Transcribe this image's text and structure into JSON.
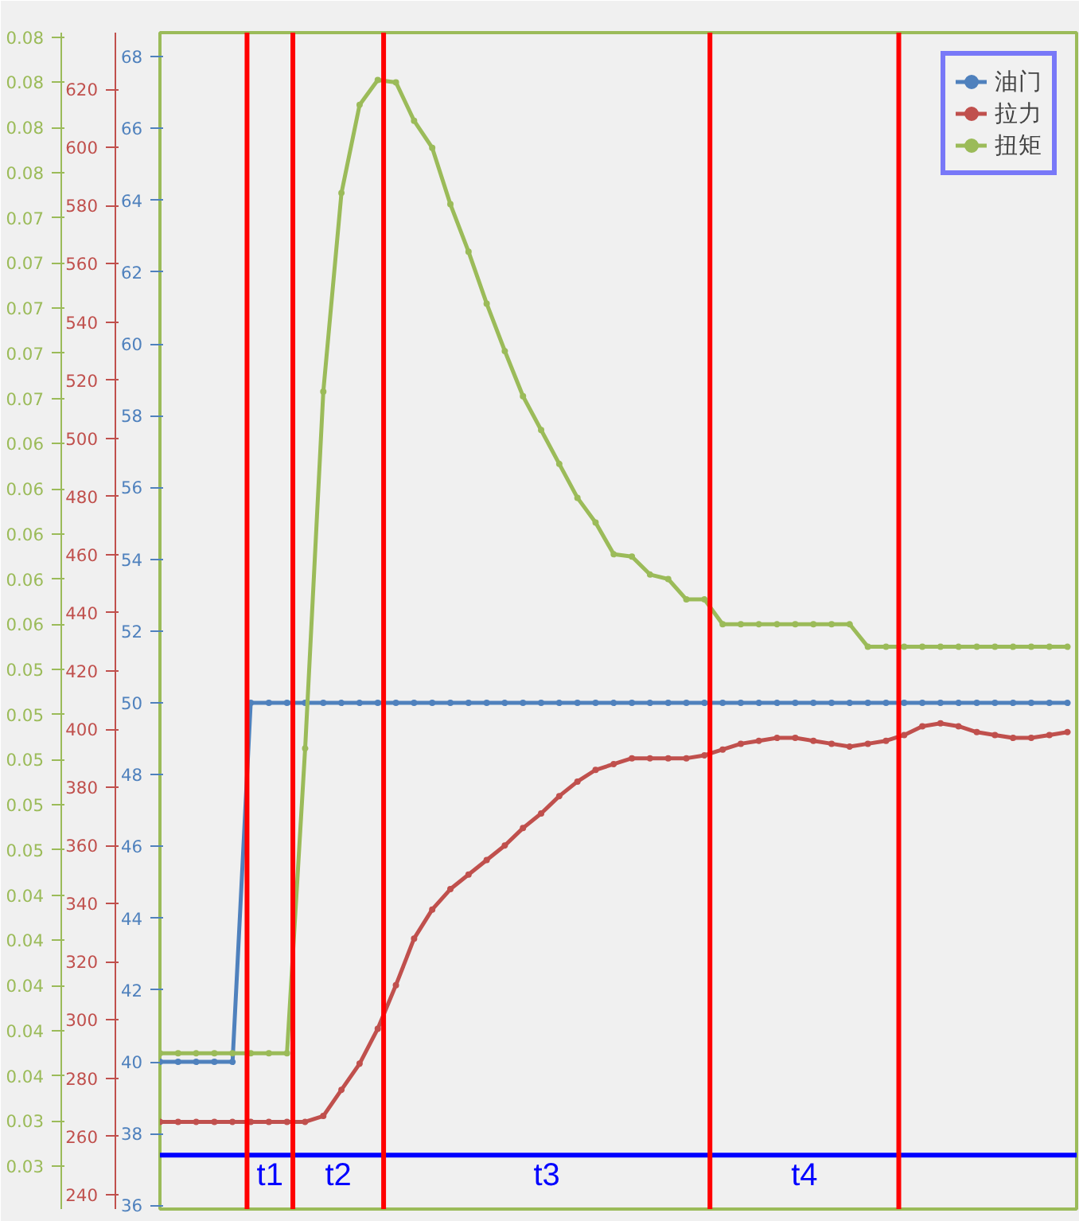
{
  "chart_data": {
    "type": "line",
    "tick_labels": "y",
    "legend": "top right",
    "marker": "circle",
    "grid": false,
    "categories": [
      null,
      null,
      null,
      null,
      null,
      null,
      null,
      null,
      null,
      null,
      null,
      null,
      null,
      null,
      null,
      null,
      null,
      null,
      null,
      null,
      null,
      null,
      null,
      null,
      null,
      null,
      null,
      null,
      null,
      null,
      null,
      null,
      null,
      null,
      null,
      null,
      null,
      null,
      null,
      null,
      null,
      null,
      null,
      null,
      null,
      null,
      null,
      null,
      null,
      null,
      null
    ],
    "ylim": [
      35.9,
      68.67
    ],
    "yticks": [
      36,
      38,
      40,
      42,
      44,
      46,
      48,
      50,
      52,
      54,
      56,
      58,
      60,
      62,
      64,
      66,
      68
    ],
    "y2lim": [
      235,
      639.5
    ],
    "y2ticks": [
      240,
      260,
      280,
      300,
      320,
      340,
      360,
      380,
      400,
      420,
      440,
      460,
      480,
      500,
      520,
      540,
      560,
      580,
      600,
      620
    ],
    "y3lim": [
      0.0291,
      0.0812
    ],
    "y3ticks": [
      {
        "value": 0.031,
        "label": "0.03"
      },
      {
        "value": 0.033,
        "label": "0.03"
      },
      {
        "value": 0.035,
        "label": "0.04"
      },
      {
        "value": 0.037,
        "label": "0.04"
      },
      {
        "value": 0.039,
        "label": "0.04"
      },
      {
        "value": 0.041,
        "label": "0.04"
      },
      {
        "value": 0.043,
        "label": "0.04"
      },
      {
        "value": 0.045,
        "label": "0.05"
      },
      {
        "value": 0.047,
        "label": "0.05"
      },
      {
        "value": 0.049,
        "label": "0.05"
      },
      {
        "value": 0.051,
        "label": "0.05"
      },
      {
        "value": 0.053,
        "label": "0.05"
      },
      {
        "value": 0.055,
        "label": "0.06"
      },
      {
        "value": 0.057,
        "label": "0.06"
      },
      {
        "value": 0.059,
        "label": "0.06"
      },
      {
        "value": 0.061,
        "label": "0.06"
      },
      {
        "value": 0.063,
        "label": "0.06"
      },
      {
        "value": 0.065,
        "label": "0.07"
      },
      {
        "value": 0.067,
        "label": "0.07"
      },
      {
        "value": 0.069,
        "label": "0.07"
      },
      {
        "value": 0.071,
        "label": "0.07"
      },
      {
        "value": 0.073,
        "label": "0.07"
      },
      {
        "value": 0.075,
        "label": "0.08"
      },
      {
        "value": 0.077,
        "label": "0.08"
      },
      {
        "value": 0.079,
        "label": "0.08"
      },
      {
        "value": 0.081,
        "label": "0.08"
      }
    ],
    "series": [
      {
        "name": "油门",
        "color": "#4f81bd",
        "axis": "y",
        "values": [
          40,
          40,
          40,
          40,
          40,
          50,
          50,
          50,
          50,
          50,
          50,
          50,
          50,
          50,
          50,
          50,
          50,
          50,
          50,
          50,
          50,
          50,
          50,
          50,
          50,
          50,
          50,
          50,
          50,
          50,
          50,
          50,
          50,
          50,
          50,
          50,
          50,
          50,
          50,
          50,
          50,
          50,
          50,
          50,
          50,
          50,
          50,
          50,
          50,
          50,
          50
        ]
      },
      {
        "name": "拉力",
        "color": "#c0504d",
        "axis": "y2",
        "values": [
          265,
          265,
          265,
          265,
          265,
          265,
          265,
          265,
          265,
          267,
          276,
          285,
          297,
          312,
          328,
          338,
          345,
          350,
          355,
          360,
          366,
          371,
          377,
          382,
          386,
          388,
          390,
          390,
          390,
          390,
          391,
          393,
          395,
          396,
          397,
          397,
          396,
          395,
          394,
          395,
          396,
          398,
          401,
          402,
          401,
          399,
          398,
          397,
          397,
          398,
          399
        ]
      },
      {
        "name": "扭矩",
        "color": "#9bbb59",
        "axis": "y3",
        "values": [
          0.036,
          0.036,
          0.036,
          0.036,
          0.036,
          0.036,
          0.036,
          0.036,
          0.0495,
          0.0653,
          0.0741,
          0.078,
          0.0791,
          0.079,
          0.0773,
          0.0761,
          0.0736,
          0.0715,
          0.0692,
          0.0671,
          0.0651,
          0.0636,
          0.0621,
          0.0606,
          0.0595,
          0.0581,
          0.058,
          0.0572,
          0.057,
          0.0561,
          0.0561,
          0.055,
          0.055,
          0.055,
          0.055,
          0.055,
          0.055,
          0.055,
          0.055,
          0.054,
          0.054,
          0.054,
          0.054,
          0.054,
          0.054,
          0.054,
          0.054,
          0.054,
          0.054,
          0.054,
          0.054
        ]
      }
    ],
    "ref_lines": [
      {
        "axis": "y",
        "value": 37.4,
        "color": "#0000ff"
      }
    ],
    "annotations": [
      "t1",
      "t2",
      "t3",
      "t4"
    ]
  }
}
